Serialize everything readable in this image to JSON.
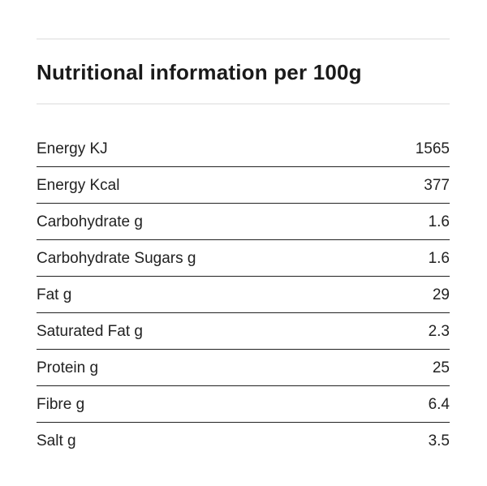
{
  "title": "Nutritional information per 100g",
  "rows": [
    {
      "label": "Energy KJ",
      "value": "1565"
    },
    {
      "label": "Energy Kcal",
      "value": "377"
    },
    {
      "label": "Carbohydrate g",
      "value": "1.6"
    },
    {
      "label": "Carbohydrate Sugars g",
      "value": "1.6"
    },
    {
      "label": "Fat g",
      "value": "29"
    },
    {
      "label": "Saturated Fat g",
      "value": "2.3"
    },
    {
      "label": "Protein g",
      "value": "25"
    },
    {
      "label": "Fibre g",
      "value": "6.4"
    },
    {
      "label": "Salt g",
      "value": "3.5"
    }
  ]
}
